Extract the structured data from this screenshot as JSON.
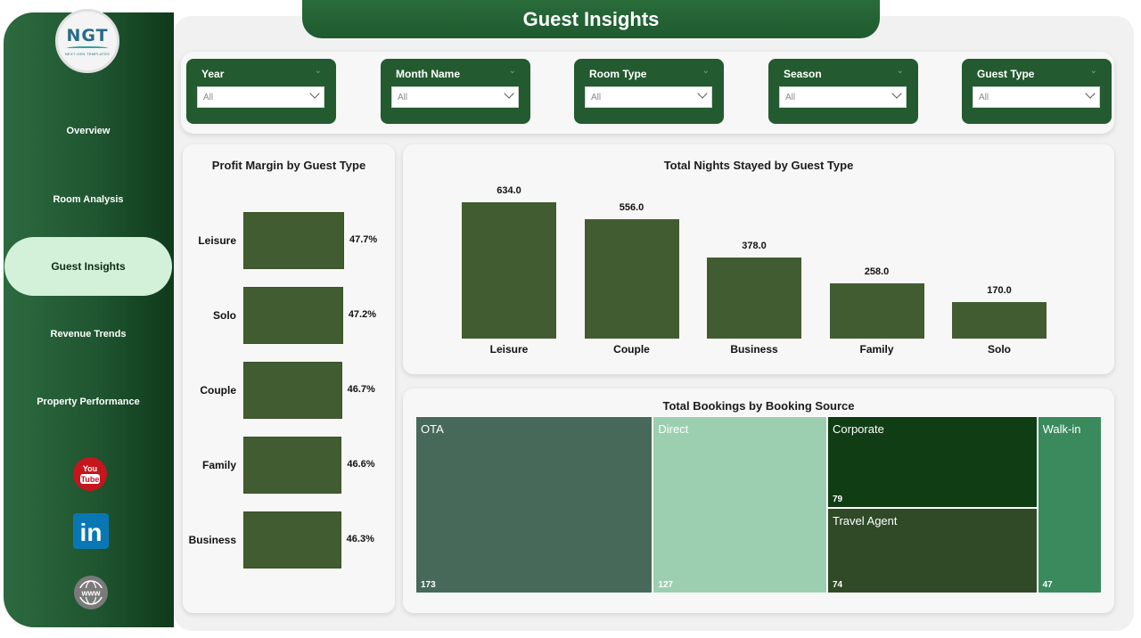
{
  "sidebar": {
    "logo": {
      "text": "NGT",
      "subtext": "NEXT GEN TEMPLATES"
    },
    "items": [
      {
        "label": "Overview"
      },
      {
        "label": "Room Analysis"
      },
      {
        "label": "Guest Insights",
        "active": true
      },
      {
        "label": "Revenue Trends"
      },
      {
        "label": "Property Performance"
      }
    ],
    "social": [
      {
        "icon": "youtube-icon",
        "label": "You Tube"
      },
      {
        "icon": "linkedin-icon",
        "label": "in"
      },
      {
        "icon": "website-icon",
        "label": "www"
      }
    ]
  },
  "header": {
    "title": "Guest Insights"
  },
  "filters": [
    {
      "label": "Year",
      "value": "All"
    },
    {
      "label": "Month Name",
      "value": "All"
    },
    {
      "label": "Room Type",
      "value": "All"
    },
    {
      "label": "Season",
      "value": "All"
    },
    {
      "label": "Guest Type",
      "value": "All"
    }
  ],
  "colors": {
    "accent": "#245a30",
    "bar": "#425c31",
    "active_nav": "#d3f0d8"
  },
  "chart_data": [
    {
      "type": "bar",
      "orientation": "horizontal",
      "title": "Profit Margin by Guest Type",
      "categories": [
        "Leisure",
        "Solo",
        "Couple",
        "Family",
        "Business"
      ],
      "values": [
        47.7,
        47.2,
        46.7,
        46.6,
        46.3
      ],
      "value_labels": [
        "47.7%",
        "47.2%",
        "46.7%",
        "46.6%",
        "46.3%"
      ],
      "unit": "%"
    },
    {
      "type": "bar",
      "title": "Total Nights Stayed by Guest Type",
      "categories": [
        "Leisure",
        "Couple",
        "Business",
        "Family",
        "Solo"
      ],
      "values": [
        634.0,
        556.0,
        378.0,
        258.0,
        170.0
      ],
      "value_labels": [
        "634.0",
        "556.0",
        "378.0",
        "258.0",
        "170.0"
      ]
    },
    {
      "type": "treemap",
      "title": "Total Bookings by Booking Source",
      "items": [
        {
          "name": "OTA",
          "value": 173,
          "color": "#47695a"
        },
        {
          "name": "Direct",
          "value": 127,
          "color": "#9ccfb0"
        },
        {
          "name": "Corporate",
          "value": 79,
          "color": "#103d14"
        },
        {
          "name": "Travel Agent",
          "value": 74,
          "color": "#304a27"
        },
        {
          "name": "Walk-in",
          "value": 47,
          "color": "#3a8a5e"
        }
      ]
    }
  ]
}
